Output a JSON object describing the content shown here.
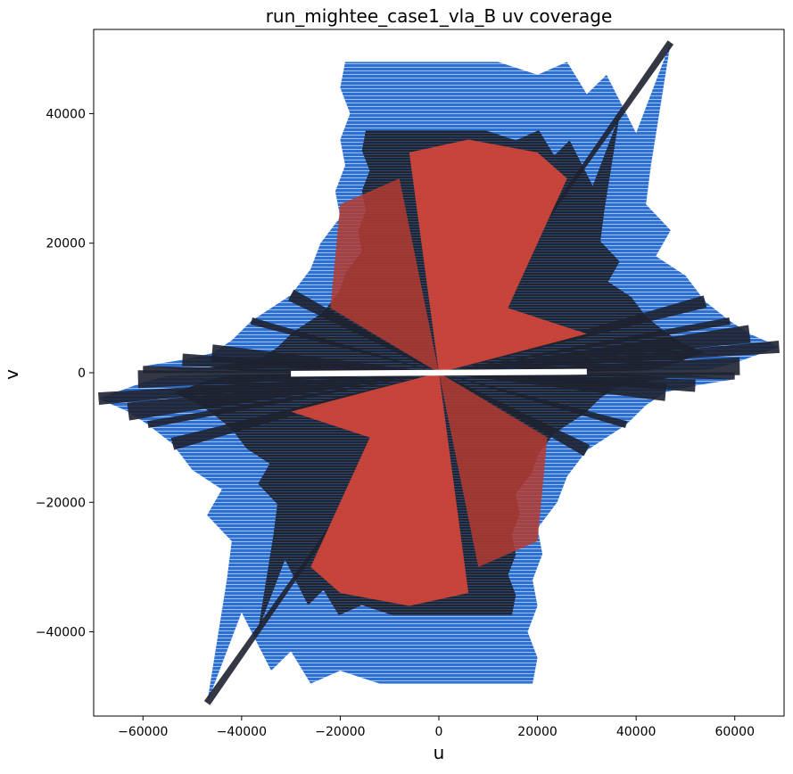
{
  "chart_data": {
    "type": "scatter",
    "title": "run_mightee_case1_vla_B uv coverage",
    "xlabel": "u",
    "ylabel": "v",
    "xlim": [
      -70000,
      70000
    ],
    "ylim": [
      -53000,
      53000
    ],
    "xticks": [
      -60000,
      -40000,
      -20000,
      0,
      20000,
      40000,
      60000
    ],
    "yticks": [
      -40000,
      -20000,
      0,
      20000,
      40000
    ],
    "xtick_labels": [
      "−60000",
      "−40000",
      "−20000",
      "0",
      "20000",
      "40000",
      "60000"
    ],
    "ytick_labels": [
      "−40000",
      "−20000",
      "0",
      "20000",
      "40000"
    ],
    "grid": false,
    "legend": "none",
    "colormap": [
      "#2a6fd6",
      "#1c1c24",
      "#d9453a"
    ],
    "colormap_meaning": "points colored by density: sparse blue, medium dark, dense red",
    "symmetric": "hermitian (u,v) and (-u,-v)",
    "envelope_right_upper_half": [
      [
        0,
        48000
      ],
      [
        12000,
        48000
      ],
      [
        20000,
        46000
      ],
      [
        26000,
        48000
      ],
      [
        30000,
        43000
      ],
      [
        34000,
        46000
      ],
      [
        40000,
        37000
      ],
      [
        47000,
        51000
      ],
      [
        43000,
        32000
      ],
      [
        42000,
        26000
      ],
      [
        47000,
        22000
      ],
      [
        44000,
        18000
      ],
      [
        50000,
        15000
      ],
      [
        54000,
        11000
      ],
      [
        59000,
        8000
      ],
      [
        63000,
        6000
      ],
      [
        69000,
        4000
      ],
      [
        60000,
        1500
      ],
      [
        55000,
        500
      ],
      [
        40000,
        200
      ]
    ],
    "envelope_left_upper_half": [
      [
        0,
        48000
      ],
      [
        -12000,
        48000
      ],
      [
        -19000,
        48000
      ],
      [
        -20000,
        44000
      ],
      [
        -18000,
        40000
      ],
      [
        -20000,
        36000
      ],
      [
        -19000,
        32000
      ],
      [
        -21000,
        28000
      ],
      [
        -20000,
        24000
      ],
      [
        -24000,
        20000
      ],
      [
        -26000,
        16000
      ],
      [
        -30000,
        12000
      ],
      [
        -38000,
        8000
      ],
      [
        -42000,
        5000
      ],
      [
        -46000,
        3000
      ],
      [
        -52000,
        2000
      ],
      [
        -60000,
        1000
      ],
      [
        -50000,
        300
      ]
    ],
    "arms_upper_half": [
      {
        "u_end": 47000,
        "v_end": 51000
      },
      {
        "u_end": 69000,
        "v_end": 4000
      },
      {
        "u_end": 63000,
        "v_end": 6000
      },
      {
        "u_end": 59000,
        "v_end": 8000
      },
      {
        "u_end": 54000,
        "v_end": 11000
      },
      {
        "u_end": 61000,
        "v_end": 1000
      },
      {
        "u_end": -60000,
        "v_end": 500
      },
      {
        "u_end": -52000,
        "v_end": 2000
      },
      {
        "u_end": -46000,
        "v_end": 3000
      },
      {
        "u_end": -38000,
        "v_end": 8000
      },
      {
        "u_end": -30000,
        "v_end": 12000
      }
    ]
  }
}
